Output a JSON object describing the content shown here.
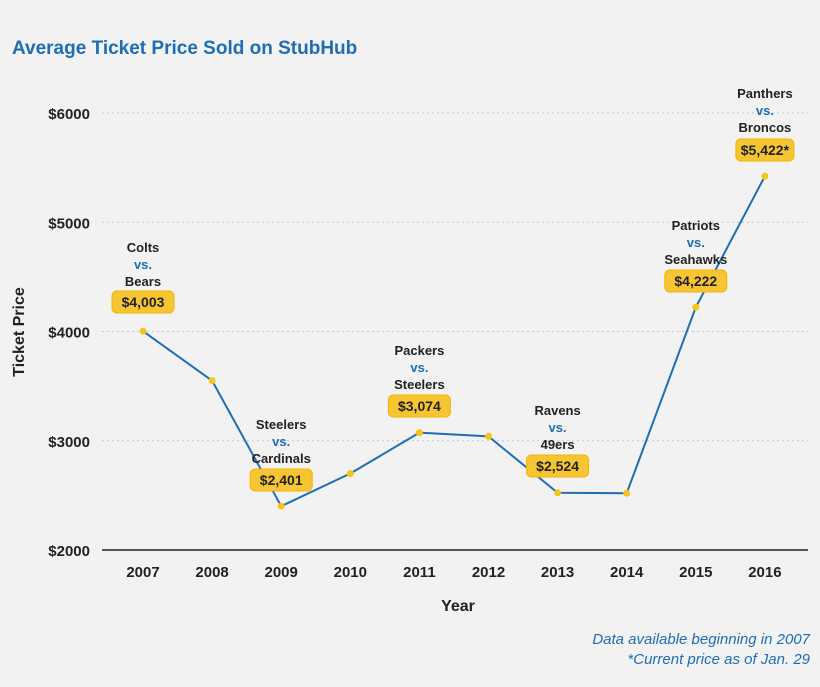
{
  "title": "Average Ticket Price Sold on StubHub",
  "chart_data": {
    "type": "line",
    "title": "Average Ticket Price Sold on StubHub",
    "xlabel": "Year",
    "ylabel": "Ticket Price",
    "categories": [
      "2007",
      "2008",
      "2009",
      "2010",
      "2011",
      "2012",
      "2013",
      "2014",
      "2015",
      "2016"
    ],
    "series": [
      {
        "values": [
          4003,
          3550,
          2401,
          2700,
          3074,
          3040,
          2524,
          2520,
          4222,
          5422
        ]
      }
    ],
    "ylim": [
      2000,
      6000
    ],
    "yticks": [
      2000,
      3000,
      4000,
      5000,
      6000
    ],
    "ytick_labels": [
      "$2000",
      "$3000",
      "$4000",
      "$5000",
      "$6000"
    ],
    "grid": "horizontal dotted",
    "annotations": [
      {
        "year": "2007",
        "team1": "Colts",
        "vs": "vs.",
        "team2": "Bears",
        "price": "$4,003"
      },
      {
        "year": "2009",
        "team1": "Steelers",
        "vs": "vs.",
        "team2": "Cardinals",
        "price": "$2,401"
      },
      {
        "year": "2011",
        "team1": "Packers",
        "vs": "vs.",
        "team2": "Steelers",
        "price": "$3,074"
      },
      {
        "year": "2013",
        "team1": "Ravens",
        "vs": "vs.",
        "team2": "49ers",
        "price": "$2,524"
      },
      {
        "year": "2015",
        "team1": "Patriots",
        "vs": "vs.",
        "team2": "Seahawks",
        "price": "$4,222"
      },
      {
        "year": "2016",
        "team1": "Panthers",
        "vs": "vs.",
        "team2": "Broncos",
        "price": "$5,422*"
      }
    ]
  },
  "colors": {
    "line": "#1f6db5",
    "marker": "#f5c518",
    "badge": "#f7c531",
    "title": "#1f6db5",
    "grid": "#b9c9da",
    "axis": "#555555"
  },
  "footnotes": [
    "Data available beginning  in 2007",
    "*Current price as of Jan. 29"
  ]
}
